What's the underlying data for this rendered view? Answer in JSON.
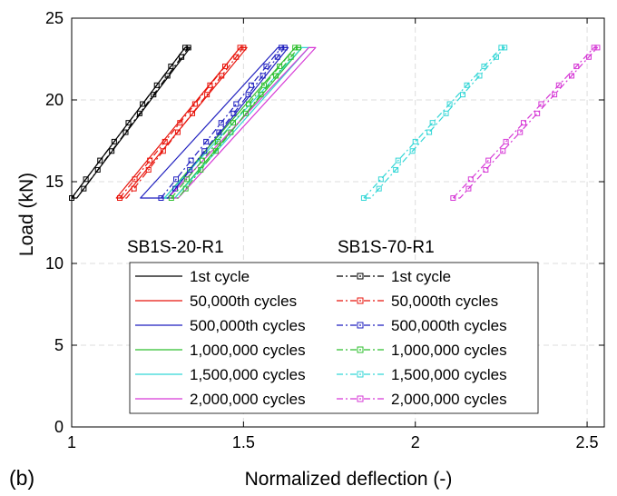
{
  "chart_data": {
    "type": "line",
    "panel_label": "(b)",
    "xlabel": "Normalized deflection (-)",
    "ylabel": "Load (kN)",
    "xlim": [
      1,
      2.55
    ],
    "ylim": [
      0,
      25
    ],
    "xticks": [
      "1",
      "1.5",
      "2",
      "2.5"
    ],
    "yticks": [
      "0",
      "5",
      "10",
      "15",
      "20",
      "25"
    ],
    "grid": true,
    "legend_position": "center-left, two columns",
    "group_labels": [
      "SB1S-20-R1",
      "SB1S-70-R1"
    ],
    "series": [
      {
        "name": "1st cycle",
        "specimen": "SB1S-20-R1",
        "color": "#000000",
        "style": "solid",
        "marker": "none",
        "load": [
          14,
          23.2
        ],
        "deflection_loading": [
          1.0,
          1.33
        ],
        "deflection_unloading": [
          1.015,
          1.345
        ]
      },
      {
        "name": "50,000th cycles",
        "specimen": "SB1S-20-R1",
        "color": "#e8150c",
        "style": "solid",
        "marker": "none",
        "load": [
          14,
          23.2
        ],
        "deflection_loading": [
          1.13,
          1.49
        ],
        "deflection_unloading": [
          1.15,
          1.51
        ]
      },
      {
        "name": "500,000th cycles",
        "specimen": "SB1S-20-R1",
        "color": "#1f1fbf",
        "style": "solid",
        "marker": "none",
        "load": [
          14,
          23.2
        ],
        "deflection_loading": [
          1.2,
          1.6
        ],
        "deflection_unloading": [
          1.28,
          1.63
        ]
      },
      {
        "name": "1,000,000 cycles",
        "specimen": "SB1S-20-R1",
        "color": "#2fbf2f",
        "style": "solid",
        "marker": "none",
        "load": [
          14,
          23.2
        ],
        "deflection_loading": [
          1.27,
          1.65
        ],
        "deflection_unloading": [
          1.3,
          1.67
        ]
      },
      {
        "name": "1,500,000 cycles",
        "specimen": "SB1S-20-R1",
        "color": "#33d6d6",
        "style": "solid",
        "marker": "none",
        "load": [
          14,
          23.2
        ],
        "deflection_loading": [
          1.27,
          1.67
        ],
        "deflection_unloading": [
          1.3,
          1.69
        ]
      },
      {
        "name": "2,000,000 cycles",
        "specimen": "SB1S-20-R1",
        "color": "#d639d6",
        "style": "solid",
        "marker": "none",
        "load": [
          14,
          23.2
        ],
        "deflection_loading": [
          1.28,
          1.69
        ],
        "deflection_unloading": [
          1.31,
          1.71
        ]
      },
      {
        "name": "1st cycle",
        "specimen": "SB1S-70-R1",
        "color": "#000000",
        "style": "dashed",
        "marker": "square",
        "load": [
          14,
          23.2
        ],
        "deflection_loading": [
          1.0,
          1.33
        ],
        "deflection_unloading": [
          1.015,
          1.34
        ]
      },
      {
        "name": "50,000th cycles",
        "specimen": "SB1S-70-R1",
        "color": "#e8150c",
        "style": "dashed",
        "marker": "square",
        "load": [
          14,
          23.2
        ],
        "deflection_loading": [
          1.14,
          1.49
        ],
        "deflection_unloading": [
          1.16,
          1.5
        ]
      },
      {
        "name": "500,000th cycles",
        "specimen": "SB1S-70-R1",
        "color": "#1f1fbf",
        "style": "dashed",
        "marker": "square",
        "load": [
          14,
          23.2
        ],
        "deflection_loading": [
          1.26,
          1.61
        ],
        "deflection_unloading": [
          1.28,
          1.62
        ]
      },
      {
        "name": "1,000,000 cycles",
        "specimen": "SB1S-70-R1",
        "color": "#2fbf2f",
        "style": "dashed",
        "marker": "square",
        "load": [
          14,
          23.2
        ],
        "deflection_loading": [
          1.29,
          1.65
        ],
        "deflection_unloading": [
          1.31,
          1.66
        ]
      },
      {
        "name": "1,500,000 cycles",
        "specimen": "SB1S-70-R1",
        "color": "#33d6d6",
        "style": "dashed",
        "marker": "square",
        "load": [
          14,
          23.2
        ],
        "deflection_loading": [
          1.85,
          2.25
        ],
        "deflection_unloading": [
          1.87,
          2.26
        ]
      },
      {
        "name": "2,000,000 cycles",
        "specimen": "SB1S-70-R1",
        "color": "#d639d6",
        "style": "dashed",
        "marker": "square",
        "load": [
          14,
          23.2
        ],
        "deflection_loading": [
          2.11,
          2.52
        ],
        "deflection_unloading": [
          2.13,
          2.53
        ]
      }
    ]
  }
}
